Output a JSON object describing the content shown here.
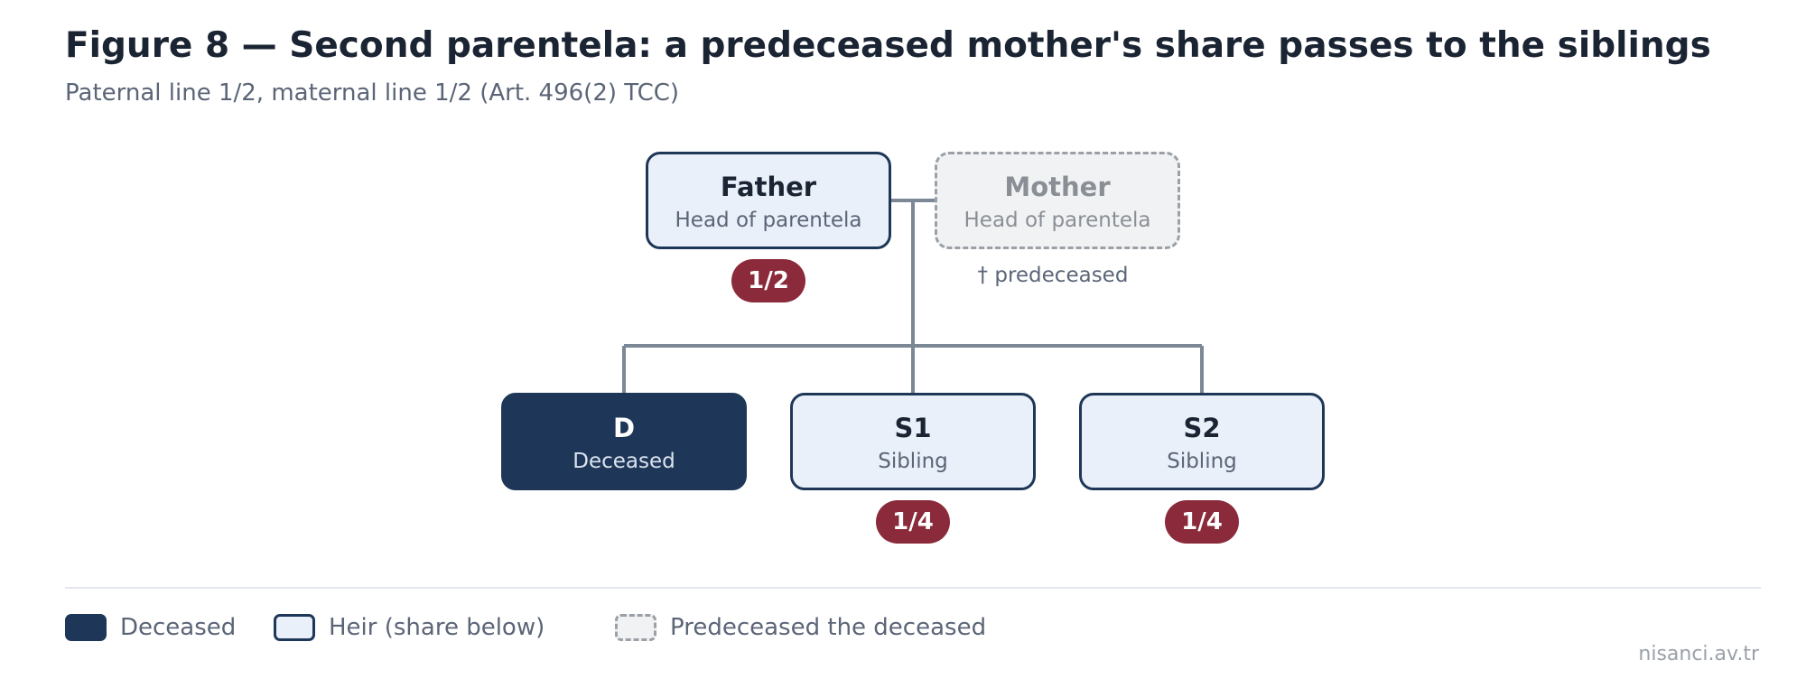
{
  "title": "Figure 8 — Second parentela: a predeceased mother's share passes to the siblings",
  "subtitle": "Paternal line 1/2, maternal line 1/2 (Art. 496(2) TCC)",
  "colors": {
    "deceased": "#1e3758",
    "heir_fill": "#e9f0f9",
    "predeceased_fill": "#f1f2f3",
    "share_badge": "#8b2a3a",
    "connector": "#7d8896"
  },
  "nodes": {
    "father": {
      "name": "Father",
      "role": "Head of parentela",
      "share": "1/2"
    },
    "mother": {
      "name": "Mother",
      "role": "Head of parentela",
      "note": "† predeceased"
    },
    "d": {
      "name": "D",
      "role": "Deceased"
    },
    "s1": {
      "name": "S1",
      "role": "Sibling",
      "share": "1/4"
    },
    "s2": {
      "name": "S2",
      "role": "Sibling",
      "share": "1/4"
    }
  },
  "legend": {
    "deceased": "Deceased",
    "heir": "Heir (share below)",
    "predeceased": "Predeceased the deceased"
  },
  "credit": "nisanci.av.tr"
}
